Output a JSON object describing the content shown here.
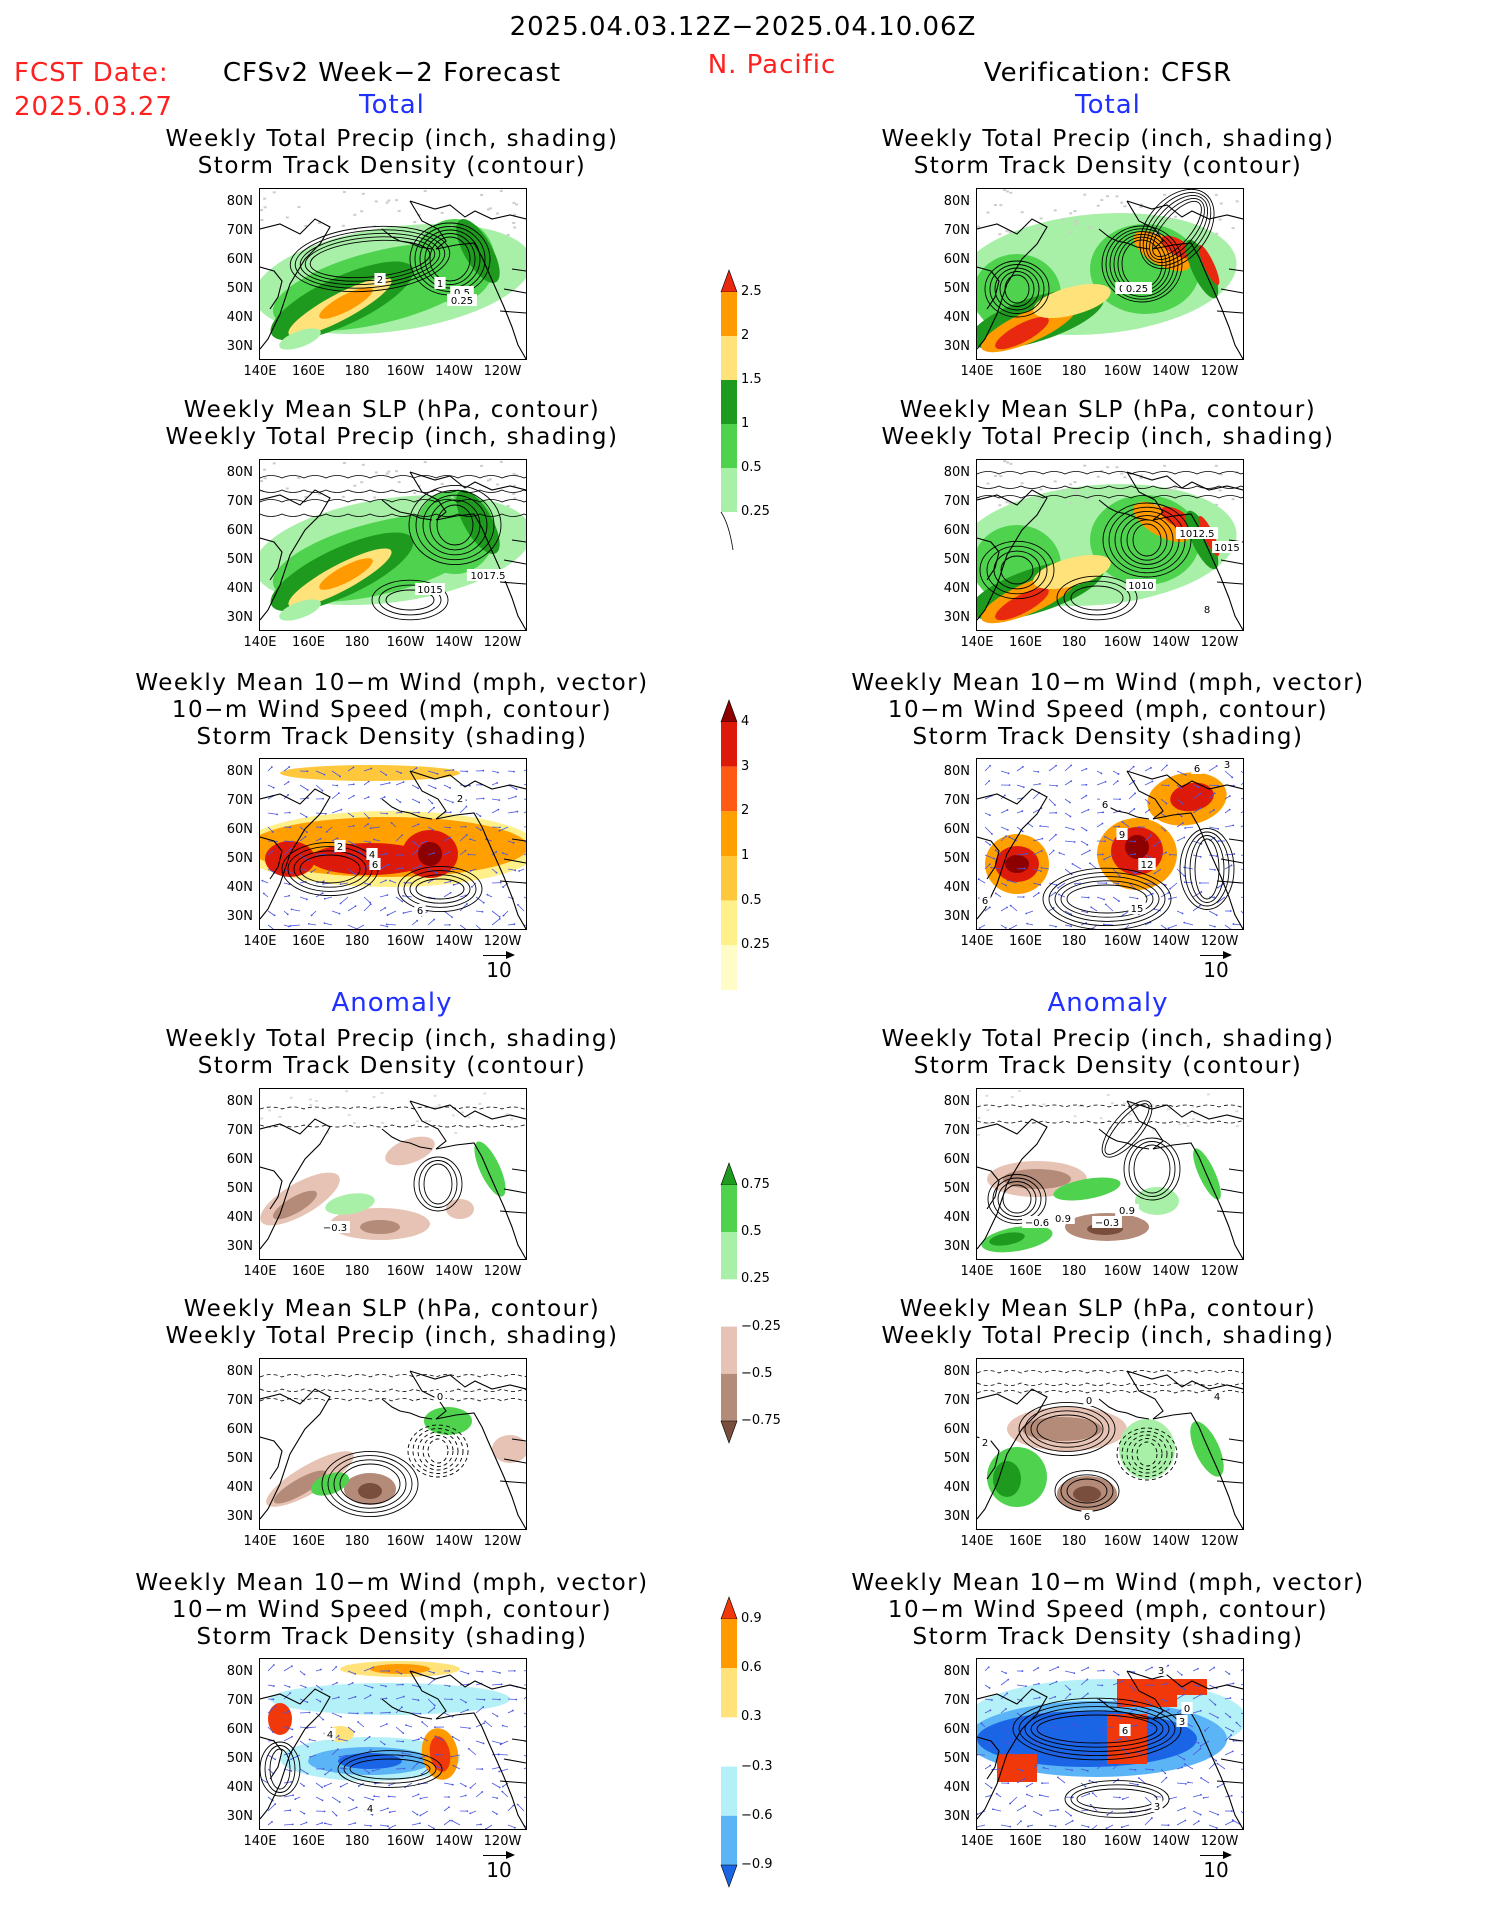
{
  "header": {
    "period": "2025.04.03.12Z−2025.04.10.06Z",
    "fcst_label": "FCST Date:",
    "fcst_date": "2025.03.27",
    "forecast_title": "CFSv2 Week−2 Forecast",
    "region": "N. Pacific",
    "verification_title": "Verification: CFSR"
  },
  "sections": {
    "total": "Total",
    "anomaly": "Anomaly"
  },
  "panel_titles": {
    "precip_storm": [
      "Weekly Total Precip (inch, shading)",
      "Storm Track Density (contour)"
    ],
    "slp_precip": [
      "Weekly Mean SLP (hPa, contour)",
      "Weekly Total Precip (inch, shading)"
    ],
    "wind_storm": [
      "Weekly Mean 10−m Wind (mph, vector)",
      "10−m Wind Speed (mph, contour)",
      "Storm Track Density (shading)"
    ]
  },
  "axes": {
    "lat_ticks": [
      "80N",
      "70N",
      "60N",
      "50N",
      "40N",
      "30N"
    ],
    "lon_ticks": [
      "140E",
      "160E",
      "180",
      "160W",
      "140W",
      "120W"
    ]
  },
  "vector_reference": "10",
  "colorbars": {
    "precip_total": {
      "labels": [
        "2.5",
        "2",
        "1.5",
        "1",
        "0.5",
        "0.25"
      ],
      "colors": [
        "#e8280f",
        "#ff9a00",
        "#ffe27a",
        "#1e9b1e",
        "#4fd34f",
        "#a8f0a8"
      ]
    },
    "storm_total": {
      "labels": [
        "4",
        "3",
        "2",
        "1",
        "0.5",
        "0.25"
      ],
      "colors": [
        "#8c0000",
        "#dd1a0a",
        "#ff5a14",
        "#ffa000",
        "#ffc83c",
        "#fff08a",
        "#fffcc8"
      ]
    },
    "precip_anomaly": {
      "labels": [
        "0.75",
        "0.5",
        "0.25",
        "−0.25",
        "−0.5",
        "−0.75"
      ],
      "colors": [
        "#1e9b1e",
        "#4fd34f",
        "#a8f0a8",
        "#ffffff",
        "#e6c3b4",
        "#b48a78",
        "#7a4e3c"
      ]
    },
    "storm_anomaly": {
      "labels": [
        "0.9",
        "0.6",
        "0.3",
        "−0.3",
        "−0.6",
        "−0.9"
      ],
      "colors": [
        "#f0380a",
        "#ff9a00",
        "#ffe27a",
        "#ffffff",
        "#b4f0f8",
        "#5ab4f5",
        "#1a64e6"
      ]
    }
  },
  "panels": {
    "f_precip_total": {
      "contour_labels": [
        "2",
        "1",
        "0.5",
        "0.25"
      ]
    },
    "v_precip_total": {
      "contour_labels": [
        "0.5",
        "0.25"
      ]
    },
    "f_slp_total": {
      "contour_labels": [
        "1015",
        "1017.5"
      ]
    },
    "v_slp_total": {
      "contour_labels": [
        "1012.5",
        "1015",
        "1010",
        "8"
      ]
    },
    "f_wind_total": {
      "contour_labels": [
        "2",
        "4",
        "6",
        "6",
        "2"
      ]
    },
    "v_wind_total": {
      "contour_labels": [
        "6",
        "3",
        "6",
        "9",
        "12",
        "15",
        "6"
      ]
    },
    "f_precip_anom": {
      "contour_labels": [
        "−0.3"
      ]
    },
    "v_precip_anom": {
      "contour_labels": [
        "−0.6",
        "0.9",
        "−0.3",
        "0.9"
      ]
    },
    "f_slp_anom": {
      "contour_labels": [
        "0"
      ]
    },
    "v_slp_anom": {
      "contour_labels": [
        "0",
        "4",
        "2",
        "6"
      ]
    },
    "f_wind_anom": {
      "contour_labels": [
        "4",
        "4"
      ]
    },
    "v_wind_anom": {
      "contour_labels": [
        "3",
        "0",
        "6",
        "3",
        "3"
      ]
    }
  }
}
